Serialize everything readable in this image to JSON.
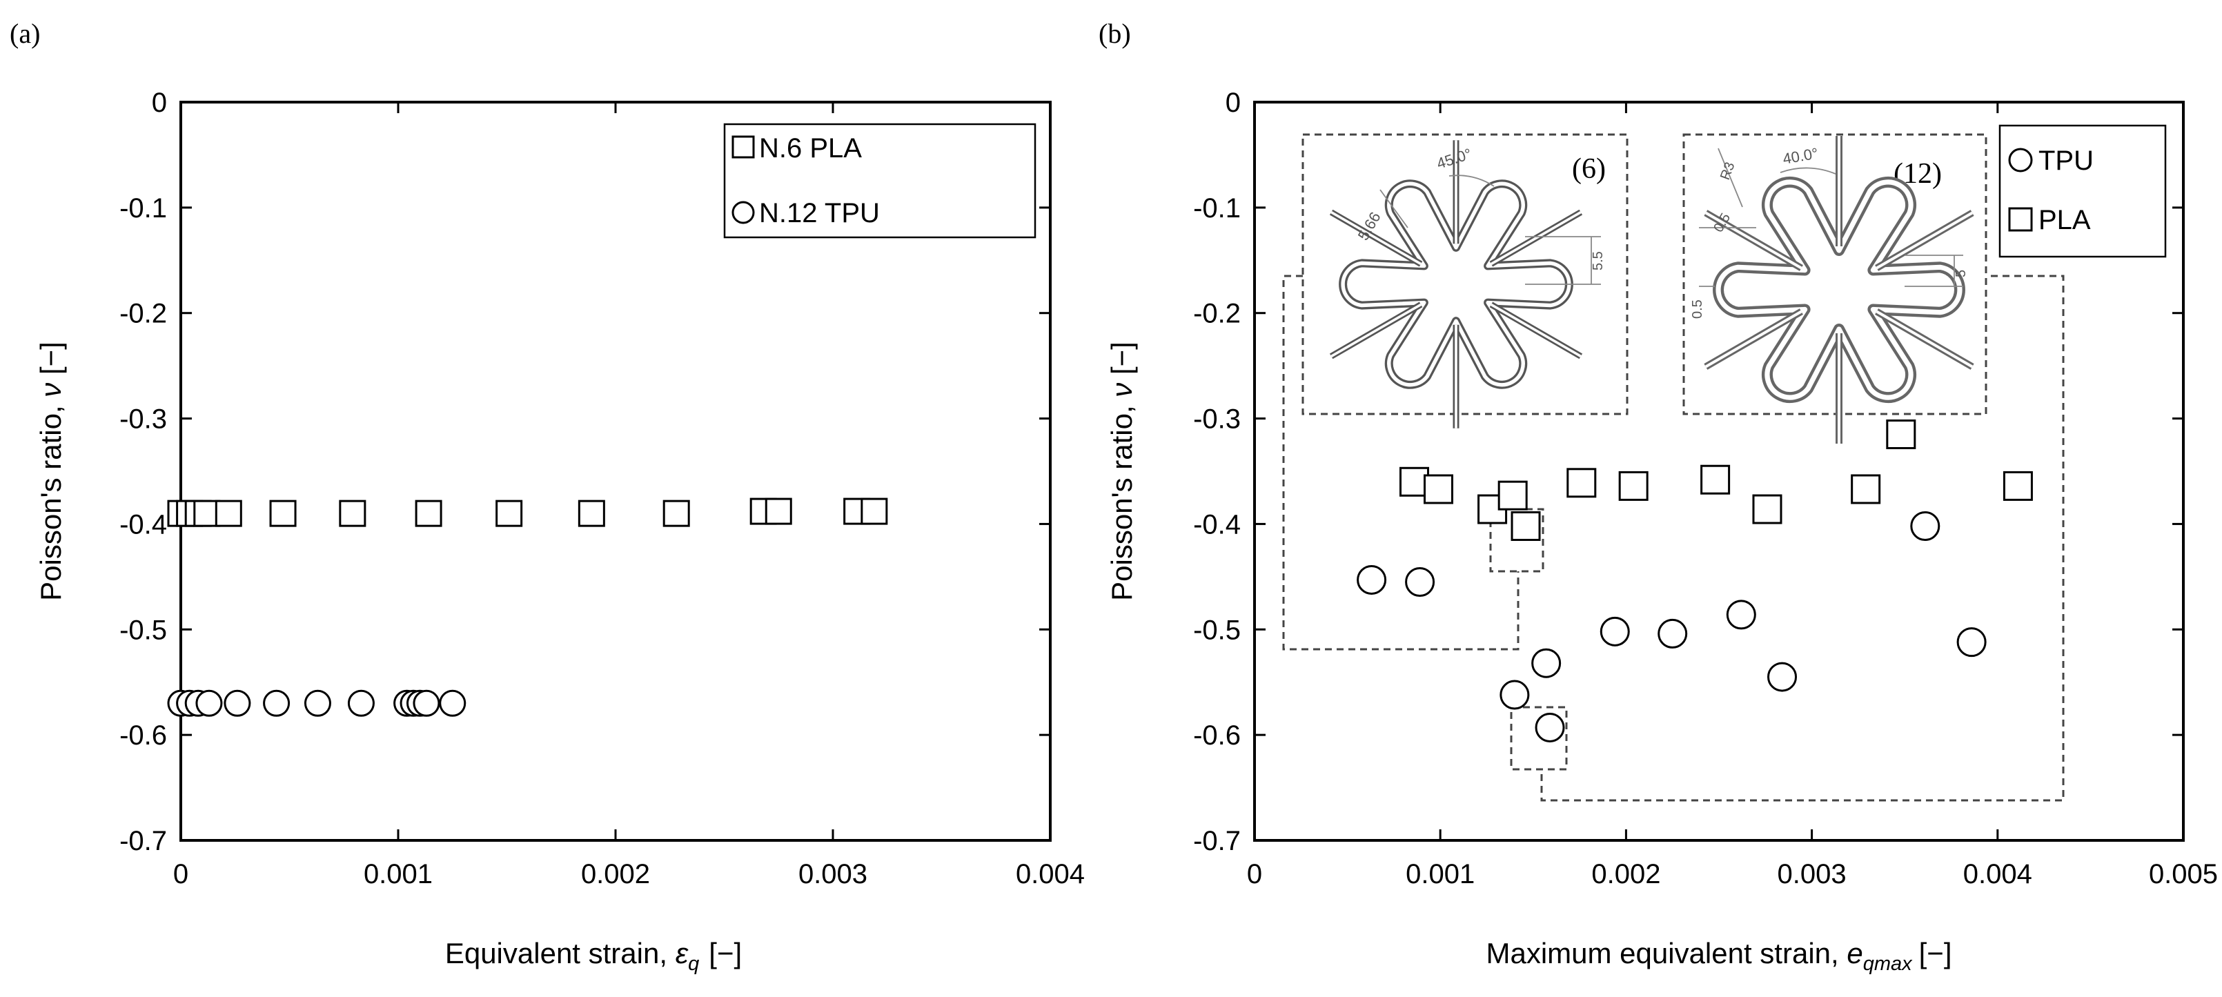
{
  "panels": [
    {
      "id": "a",
      "panel_label": "(a)",
      "chart_data": {
        "type": "scatter",
        "title": "",
        "xlabel_main": "Equivalent strain, ",
        "xlabel_symbol": "ε",
        "xlabel_sub": "q",
        "xlabel_unit": "[−]",
        "ylabel_main": "Poisson's ratio, ",
        "ylabel_symbol": "ν",
        "ylabel_unit": " [−]",
        "xlim": [
          0,
          0.004
        ],
        "ylim": [
          -0.7,
          0
        ],
        "xticks": [
          0,
          0.001,
          0.002,
          0.003,
          0.004
        ],
        "xtick_labels": [
          "0",
          "0.001",
          "0.002",
          "0.003",
          "0.004"
        ],
        "yticks": [
          0,
          -0.1,
          -0.2,
          -0.3,
          -0.4,
          -0.5,
          -0.6,
          -0.7
        ],
        "ytick_labels": [
          "0",
          "-0.1",
          "-0.2",
          "-0.3",
          "-0.4",
          "-0.5",
          "-0.6",
          "-0.7"
        ],
        "grid": false,
        "legend_position": "top-right",
        "series": [
          {
            "name": "N.6 PLA",
            "marker": "square",
            "x": [
              0,
              4e-05,
              8e-05,
              0.00012,
              0.00022,
              0.00047,
              0.00079,
              0.00114,
              0.00151,
              0.00189,
              0.00228,
              0.00268,
              0.00275,
              0.00311,
              0.00319
            ],
            "y": [
              -0.39,
              -0.39,
              -0.39,
              -0.39,
              -0.39,
              -0.39,
              -0.39,
              -0.39,
              -0.39,
              -0.39,
              -0.39,
              -0.388,
              -0.388,
              -0.388,
              -0.388
            ]
          },
          {
            "name": "N.12 TPU",
            "marker": "circle",
            "x": [
              0,
              4e-05,
              8e-05,
              0.00013,
              0.00026,
              0.00044,
              0.00063,
              0.00083,
              0.00104,
              0.00107,
              0.0011,
              0.00113,
              0.00125
            ],
            "y": [
              -0.57,
              -0.57,
              -0.57,
              -0.57,
              -0.57,
              -0.57,
              -0.57,
              -0.57,
              -0.57,
              -0.57,
              -0.57,
              -0.57,
              -0.57
            ]
          }
        ]
      }
    },
    {
      "id": "b",
      "panel_label": "(b)",
      "chart_data": {
        "type": "scatter",
        "title": "",
        "xlabel_main": "Maximum equivalent strain, ",
        "xlabel_symbol": "e",
        "xlabel_sub": "qmax",
        "xlabel_unit": "[−]",
        "ylabel_main": "Poisson's ratio, ",
        "ylabel_symbol": "ν",
        "ylabel_unit": " [−]",
        "xlim": [
          0,
          0.005
        ],
        "ylim": [
          -0.7,
          0
        ],
        "xticks": [
          0,
          0.001,
          0.002,
          0.003,
          0.004,
          0.005
        ],
        "xtick_labels": [
          "0",
          "0.001",
          "0.002",
          "0.003",
          "0.004",
          "0.005"
        ],
        "yticks": [
          0,
          -0.1,
          -0.2,
          -0.3,
          -0.4,
          -0.5,
          -0.6,
          -0.7
        ],
        "ytick_labels": [
          "0",
          "-0.1",
          "-0.2",
          "-0.3",
          "-0.4",
          "-0.5",
          "-0.6",
          "-0.7"
        ],
        "grid": false,
        "legend_position": "top-right",
        "series": [
          {
            "name": "TPU",
            "marker": "circle",
            "x": [
              0.00063,
              0.00089,
              0.0014,
              0.00159,
              0.00157,
              0.00194,
              0.00225,
              0.00262,
              0.00284,
              0.00361,
              0.00386
            ],
            "y": [
              -0.453,
              -0.455,
              -0.562,
              -0.593,
              -0.532,
              -0.502,
              -0.504,
              -0.486,
              -0.545,
              -0.402,
              -0.512
            ]
          },
          {
            "name": "PLA",
            "marker": "square",
            "x": [
              0.00086,
              0.00099,
              0.00128,
              0.00139,
              0.00146,
              0.00176,
              0.00204,
              0.00248,
              0.00276,
              0.00329,
              0.00348,
              0.00411
            ],
            "y": [
              -0.36,
              -0.367,
              -0.386,
              -0.373,
              -0.402,
              -0.361,
              -0.364,
              -0.358,
              -0.386,
              -0.367,
              -0.315,
              -0.364
            ]
          }
        ],
        "insets": [
          {
            "label": "(6)",
            "dim_angle": "45.0°",
            "dim_length": "5.66",
            "dim_side": "5.5"
          },
          {
            "label": "(12)",
            "dim_angle": "40.0°",
            "dim_radius": "R3",
            "dim_thickness": "0.5",
            "dim_thickness_side": "0.5",
            "dim_side": "5"
          }
        ]
      }
    }
  ]
}
